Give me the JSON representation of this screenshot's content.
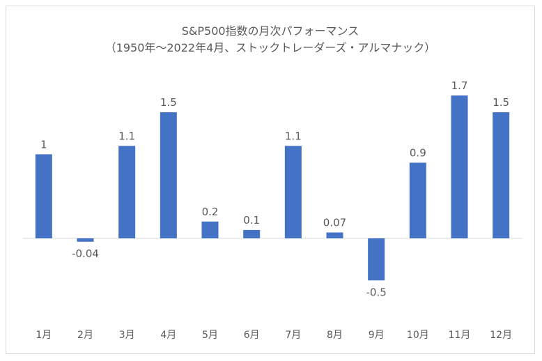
{
  "chart_data": {
    "type": "bar",
    "title": "S&P500指数の月次パフォーマンス",
    "subtitle": "（1950年～2022年4月、ストックトレーダーズ・アルマナック）",
    "categories": [
      "1月",
      "2月",
      "3月",
      "4月",
      "5月",
      "6月",
      "7月",
      "8月",
      "9月",
      "10月",
      "11月",
      "12月"
    ],
    "values": [
      1,
      -0.04,
      1.1,
      1.5,
      0.2,
      0.1,
      1.1,
      0.07,
      -0.5,
      0.9,
      1.7,
      1.5
    ],
    "value_labels": [
      "1",
      "-0.04",
      "1.1",
      "1.5",
      "0.2",
      "0.1",
      "1.1",
      "0.07",
      "-0.5",
      "0.9",
      "1.7",
      "1.5"
    ],
    "ylim": [
      -0.7,
      2.0
    ],
    "grid": false,
    "legend": false,
    "bar_color": "#4472c4",
    "text_color": "#595959"
  }
}
